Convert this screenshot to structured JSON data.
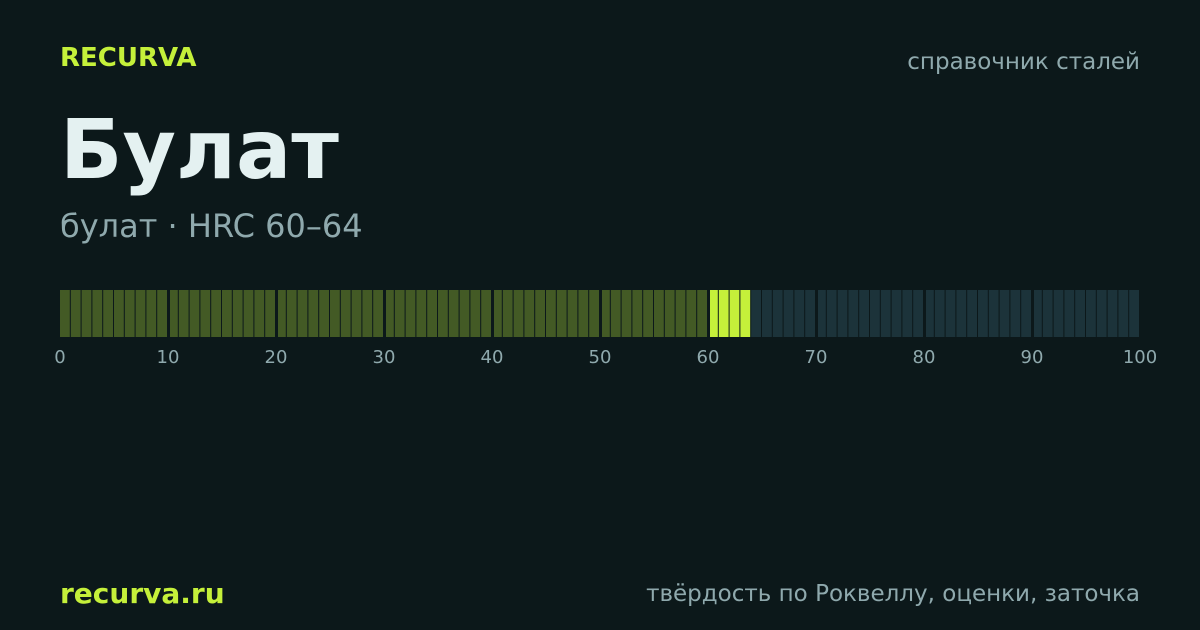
{
  "header": {
    "brand": "RECURVA",
    "section": "справочник сталей"
  },
  "title": "Булат",
  "subtitle": "булат · HRC 60–64",
  "scale": {
    "xlim": [
      0,
      100
    ],
    "xticks": [
      0,
      10,
      20,
      30,
      40,
      50,
      60,
      70,
      80,
      90,
      100
    ],
    "range": [
      60,
      64
    ],
    "colors": {
      "below": "#435a25",
      "range": "#c5f03a",
      "above": "#1c333a"
    }
  },
  "footer": {
    "site": "recurva.ru",
    "topics": "твёрдость по Роквеллу, оценки, заточка"
  }
}
